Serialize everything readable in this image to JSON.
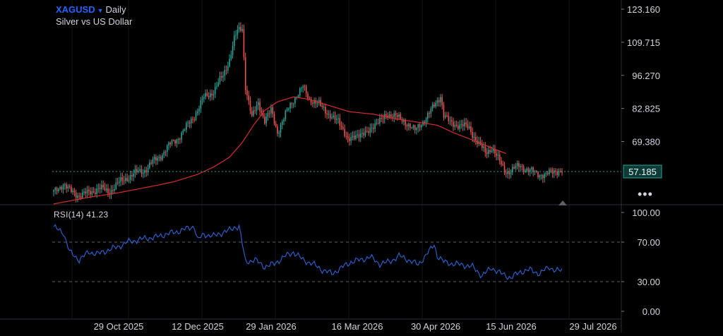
{
  "header": {
    "symbol": "XAGUSD",
    "timeframe": "Daily",
    "description": "Silver vs US Dollar"
  },
  "indicator": {
    "name": "RSI(14)",
    "value": "41.23"
  },
  "colors": {
    "up": "#26a69a",
    "down": "#ef5350",
    "ma": "#d32f2f",
    "rsi": "#2f64d6",
    "price_line": "#26a69a",
    "symbol": "#2962ff"
  },
  "more_menu": "•••",
  "chart_data": [
    {
      "type": "candlestick",
      "title": "XAGUSD",
      "yticks": [
        "123.160",
        "109.715",
        "96.270",
        "82.825",
        "69.380"
      ],
      "ylim": [
        43.5,
        123.16
      ],
      "xticks": [
        "29 Oct 2025",
        "12 Dec 2025",
        "29 Jan 2026",
        "16 Mar 2026",
        "30 Apr 2026",
        "15 Jun 2026",
        "29 Jul 2026"
      ],
      "current_price": "57.185",
      "overlays": [
        {
          "type": "moving-average",
          "points": [
            [
              0,
              44.0
            ],
            [
              20,
              46.5
            ],
            [
              40,
              48.5
            ],
            [
              60,
              51.0
            ],
            [
              75,
              53.0
            ],
            [
              90,
              56.0
            ],
            [
              100,
              59.0
            ],
            [
              110,
              63.0
            ],
            [
              118,
              69.0
            ],
            [
              125,
              76.0
            ],
            [
              132,
              82.0
            ],
            [
              140,
              85.5
            ],
            [
              150,
              87.5
            ],
            [
              160,
              86.5
            ],
            [
              170,
              84.5
            ],
            [
              185,
              81.5
            ],
            [
              200,
              80.5
            ],
            [
              215,
              78.5
            ],
            [
              230,
              77.0
            ],
            [
              240,
              76.0
            ],
            [
              250,
              73.0
            ],
            [
              260,
              70.5
            ],
            [
              275,
              66.5
            ],
            [
              283,
              64.5
            ]
          ]
        }
      ],
      "anchors": [
        [
          0,
          49.0
        ],
        [
          6,
          52.0
        ],
        [
          10,
          49.5
        ],
        [
          16,
          47.5
        ],
        [
          22,
          48.5
        ],
        [
          28,
          50.5
        ],
        [
          34,
          49.0
        ],
        [
          40,
          52.0
        ],
        [
          46,
          55.0
        ],
        [
          52,
          56.5
        ],
        [
          58,
          58.5
        ],
        [
          64,
          62.0
        ],
        [
          70,
          66.0
        ],
        [
          76,
          70.0
        ],
        [
          82,
          74.0
        ],
        [
          88,
          80.0
        ],
        [
          94,
          87.0
        ],
        [
          100,
          90.0
        ],
        [
          106,
          96.0
        ],
        [
          110,
          103.0
        ],
        [
          113,
          111.0
        ],
        [
          115,
          114.0
        ],
        [
          118,
          115.5
        ],
        [
          120,
          92.0
        ],
        [
          124,
          79.0
        ],
        [
          128,
          85.0
        ],
        [
          132,
          78.0
        ],
        [
          136,
          82.0
        ],
        [
          140,
          73.0
        ],
        [
          146,
          82.0
        ],
        [
          152,
          88.0
        ],
        [
          156,
          92.0
        ],
        [
          160,
          86.0
        ],
        [
          166,
          85.0
        ],
        [
          172,
          80.0
        ],
        [
          178,
          78.0
        ],
        [
          184,
          70.0
        ],
        [
          190,
          72.0
        ],
        [
          196,
          73.0
        ],
        [
          202,
          77.0
        ],
        [
          208,
          80.0
        ],
        [
          214,
          80.0
        ],
        [
          220,
          77.0
        ],
        [
          226,
          74.0
        ],
        [
          232,
          78.0
        ],
        [
          236,
          82.0
        ],
        [
          240,
          86.0
        ],
        [
          242,
          88.0
        ],
        [
          244,
          80.0
        ],
        [
          248,
          77.0
        ],
        [
          254,
          76.0
        ],
        [
          260,
          75.0
        ],
        [
          266,
          68.0
        ],
        [
          270,
          65.0
        ],
        [
          274,
          67.0
        ],
        [
          278,
          62.0
        ],
        [
          282,
          58.0
        ],
        [
          286,
          57.0
        ],
        [
          292,
          60.0
        ],
        [
          298,
          57.0
        ],
        [
          304,
          56.5
        ],
        [
          308,
          55.5
        ],
        [
          314,
          58.0
        ],
        [
          318,
          57.2
        ]
      ]
    },
    {
      "type": "line",
      "title": "RSI(14)",
      "yticks": [
        "100.00",
        "70.00",
        "30.00",
        "0.00"
      ],
      "ylim": [
        0,
        100
      ],
      "levels": [
        70,
        30
      ],
      "anchors": [
        [
          0,
          85
        ],
        [
          6,
          80
        ],
        [
          10,
          60
        ],
        [
          16,
          52
        ],
        [
          22,
          60
        ],
        [
          28,
          58
        ],
        [
          34,
          62
        ],
        [
          40,
          65
        ],
        [
          46,
          70
        ],
        [
          52,
          72
        ],
        [
          58,
          74
        ],
        [
          64,
          75
        ],
        [
          70,
          78
        ],
        [
          76,
          80
        ],
        [
          82,
          83
        ],
        [
          88,
          86
        ],
        [
          90,
          72
        ],
        [
          94,
          78
        ],
        [
          100,
          76
        ],
        [
          106,
          80
        ],
        [
          110,
          82
        ],
        [
          113,
          85
        ],
        [
          116,
          86
        ],
        [
          120,
          50
        ],
        [
          126,
          52
        ],
        [
          132,
          45
        ],
        [
          138,
          48
        ],
        [
          144,
          55
        ],
        [
          150,
          60
        ],
        [
          156,
          52
        ],
        [
          162,
          48
        ],
        [
          168,
          42
        ],
        [
          174,
          38
        ],
        [
          180,
          44
        ],
        [
          186,
          50
        ],
        [
          192,
          52
        ],
        [
          198,
          55
        ],
        [
          204,
          48
        ],
        [
          210,
          50
        ],
        [
          216,
          56
        ],
        [
          222,
          52
        ],
        [
          228,
          47
        ],
        [
          232,
          55
        ],
        [
          236,
          63
        ],
        [
          238,
          68
        ],
        [
          240,
          56
        ],
        [
          244,
          50
        ],
        [
          250,
          48
        ],
        [
          256,
          47
        ],
        [
          262,
          45
        ],
        [
          268,
          36
        ],
        [
          274,
          44
        ],
        [
          280,
          38
        ],
        [
          286,
          34
        ],
        [
          292,
          40
        ],
        [
          298,
          42
        ],
        [
          304,
          38
        ],
        [
          310,
          45
        ],
        [
          314,
          41
        ],
        [
          318,
          41.23
        ]
      ]
    }
  ]
}
